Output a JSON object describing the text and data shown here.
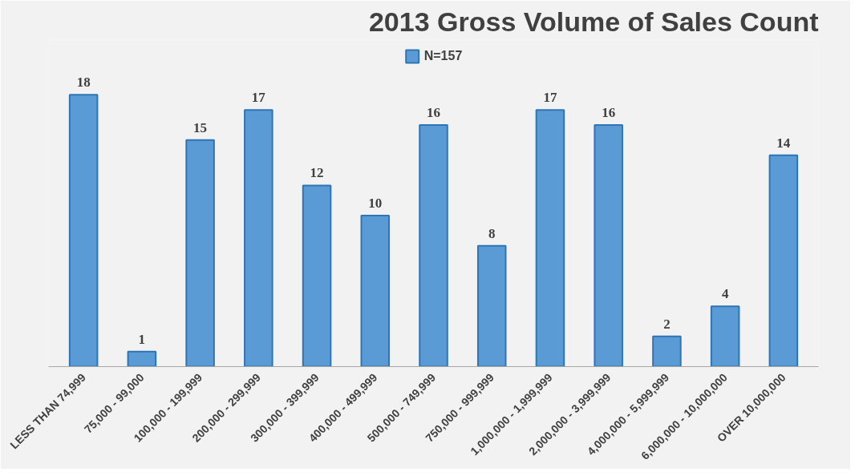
{
  "chart_data": {
    "type": "bar",
    "title": "2013 Gross Volume of Sales Count",
    "categories": [
      "LESS THAN 74,999",
      "75,000 - 99,000",
      "100,000 - 199,999",
      "200,000 - 299,999",
      "300,000 - 399,999",
      "400,000 - 499,999",
      "500,000 - 749,999",
      "750,000 - 999,999",
      "1,000,000 - 1,999,999",
      "2,000,000 - 3,999,999",
      "4,000,000 - 5,999,999",
      "6,000,000 - 10,000,000",
      "OVER 10,000,000"
    ],
    "series": [
      {
        "name": "N=157",
        "color": "#5b9bd5",
        "values": [
          18,
          1,
          15,
          17,
          12,
          10,
          16,
          8,
          17,
          16,
          2,
          4,
          14
        ]
      }
    ],
    "data_labels": true,
    "legend": "top",
    "grid": false
  }
}
